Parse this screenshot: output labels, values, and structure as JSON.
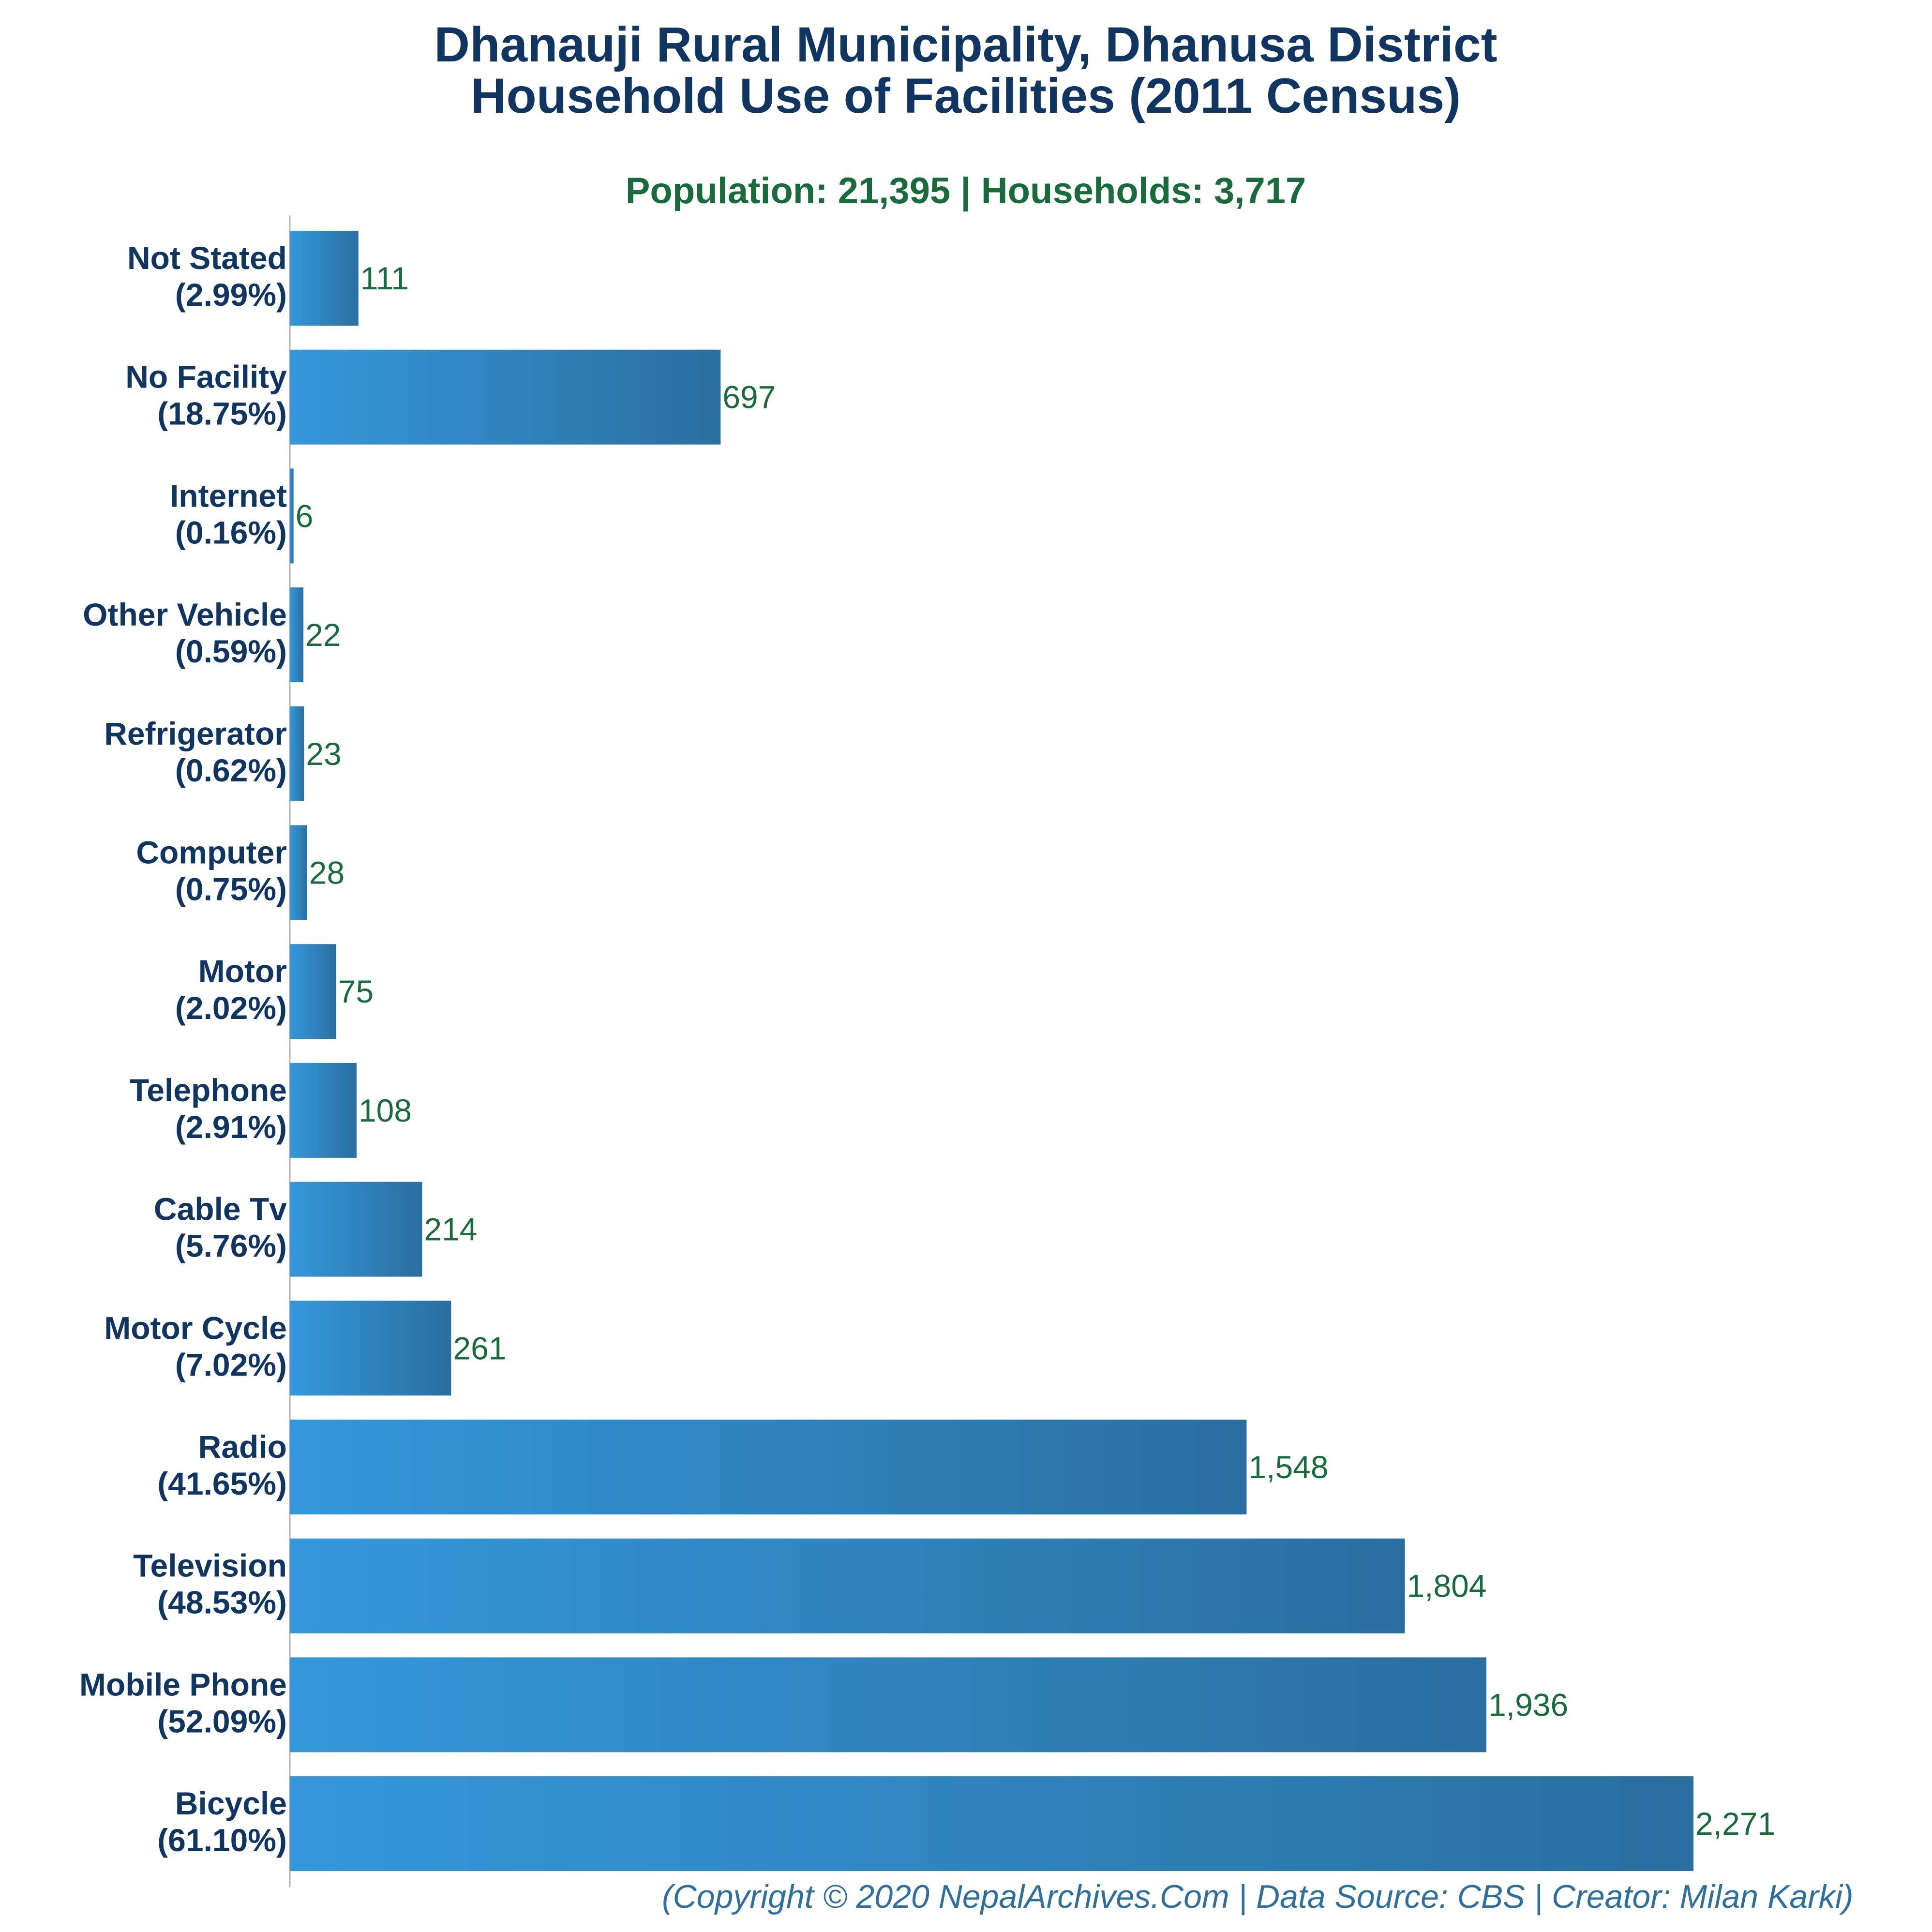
{
  "title_line1": "Dhanauji Rural Municipality, Dhanusa District",
  "title_line2": "Household Use of Facilities (2011 Census)",
  "subtitle": "Population: 21,395 | Households: 3,717",
  "footer": "(Copyright © 2020 NepalArchives.Com | Data Source: CBS | Creator: Milan Karki)",
  "colors": {
    "bar_light": "#3498db",
    "bar_dark": "#2a6fa0",
    "title": "#0f3560",
    "value": "#1a6b3c",
    "footer": "#2e6f9e"
  },
  "chart_data": {
    "type": "bar",
    "orientation": "horizontal",
    "categories": [
      "Not Stated",
      "No Facility",
      "Internet",
      "Other Vehicle",
      "Refrigerator",
      "Computer",
      "Motor",
      "Telephone",
      "Cable Tv",
      "Motor Cycle",
      "Radio",
      "Television",
      "Mobile Phone",
      "Bicycle"
    ],
    "percent_labels": [
      "(2.99%)",
      "(18.75%)",
      "(0.16%)",
      "(0.59%)",
      "(0.62%)",
      "(0.75%)",
      "(2.02%)",
      "(2.91%)",
      "(5.76%)",
      "(7.02%)",
      "(41.65%)",
      "(48.53%)",
      "(52.09%)",
      "(61.10%)"
    ],
    "values": [
      111,
      697,
      6,
      22,
      23,
      28,
      75,
      108,
      214,
      261,
      1548,
      1804,
      1936,
      2271
    ],
    "value_labels": [
      "111",
      "697",
      "6",
      "22",
      "23",
      "28",
      "75",
      "108",
      "214",
      "261",
      "1,548",
      "1,804",
      "1,936",
      "2,271"
    ],
    "xlim": [
      0,
      2271
    ],
    "grid": false,
    "legend": "none"
  }
}
